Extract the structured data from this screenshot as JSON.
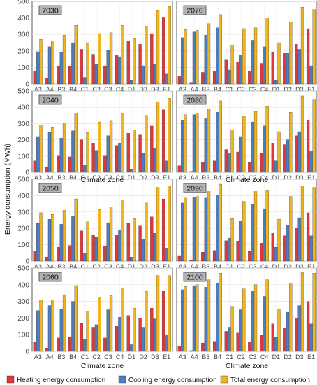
{
  "chart_data": {
    "type": "bar",
    "ylabel": "Energy consumption (MWh)",
    "xlabel": "Climate zone",
    "ylim": [
      0,
      500
    ],
    "yticks": [
      0,
      100,
      200,
      300,
      400,
      500
    ],
    "grid": true,
    "legend_position": "bottom",
    "categories": [
      "A3",
      "A4",
      "B3",
      "B4",
      "C1",
      "C2",
      "C3",
      "C4",
      "D1",
      "D2",
      "D3",
      "E1"
    ],
    "series_names": [
      "Heating energy consumption",
      "Cooling energy consumption",
      "Total energy consumption"
    ],
    "colors": {
      "heating": "#e0363c",
      "cooling": "#4a7cc4",
      "total": "#f2b51c"
    },
    "panels": [
      {
        "label": "2030",
        "heating": [
          75,
          35,
          105,
          105,
          210,
          180,
          110,
          175,
          260,
          240,
          305,
          405
        ],
        "cooling": [
          195,
          225,
          190,
          250,
          40,
          120,
          205,
          165,
          20,
          110,
          120,
          60
        ],
        "total": [
          270,
          260,
          295,
          355,
          250,
          305,
          310,
          355,
          275,
          350,
          445,
          470
        ]
      },
      {
        "label": "2070",
        "heating": [
          45,
          10,
          70,
          75,
          145,
          135,
          75,
          125,
          190,
          185,
          240,
          335
        ],
        "cooling": [
          280,
          315,
          295,
          340,
          85,
          175,
          265,
          225,
          25,
          185,
          210,
          110
        ],
        "total": [
          330,
          325,
          365,
          420,
          235,
          335,
          340,
          400,
          250,
          375,
          465,
          450
        ]
      },
      {
        "label": "2040",
        "heating": [
          70,
          30,
          100,
          95,
          200,
          180,
          100,
          165,
          240,
          230,
          285,
          385
        ],
        "cooling": [
          220,
          245,
          210,
          255,
          45,
          135,
          225,
          180,
          20,
          120,
          150,
          70
        ],
        "total": [
          290,
          275,
          305,
          365,
          245,
          310,
          315,
          360,
          260,
          350,
          435,
          455
        ]
      },
      {
        "label": "2080",
        "heating": [
          40,
          5,
          60,
          70,
          140,
          125,
          60,
          115,
          180,
          170,
          225,
          320
        ],
        "cooling": [
          320,
          355,
          330,
          370,
          120,
          220,
          310,
          285,
          70,
          200,
          250,
          130
        ],
        "total": [
          355,
          360,
          390,
          440,
          260,
          345,
          375,
          405,
          250,
          370,
          470,
          445
        ]
      },
      {
        "label": "2050",
        "heating": [
          60,
          25,
          85,
          95,
          185,
          160,
          90,
          160,
          230,
          215,
          270,
          380
        ],
        "cooling": [
          230,
          255,
          225,
          275,
          50,
          145,
          235,
          190,
          25,
          135,
          170,
          80
        ],
        "total": [
          295,
          285,
          310,
          380,
          240,
          315,
          330,
          375,
          260,
          355,
          450,
          460
        ]
      },
      {
        "label": "2090",
        "heating": [
          30,
          5,
          55,
          65,
          125,
          120,
          60,
          110,
          170,
          155,
          200,
          295
        ],
        "cooling": [
          355,
          390,
          385,
          405,
          140,
          245,
          345,
          320,
          85,
          220,
          265,
          155
        ],
        "total": [
          385,
          395,
          425,
          470,
          260,
          365,
          425,
          430,
          255,
          395,
          460,
          450
        ]
      },
      {
        "label": "2060",
        "heating": [
          55,
          20,
          80,
          85,
          170,
          145,
          80,
          150,
          215,
          200,
          260,
          360
        ],
        "cooling": [
          245,
          275,
          255,
          300,
          70,
          160,
          250,
          205,
          40,
          145,
          195,
          95
        ],
        "total": [
          310,
          310,
          340,
          395,
          240,
          325,
          335,
          380,
          260,
          360,
          455,
          455
        ]
      },
      {
        "label": "2100",
        "heating": [
          30,
          5,
          50,
          60,
          120,
          110,
          55,
          100,
          165,
          140,
          200,
          300
        ],
        "cooling": [
          370,
          395,
          385,
          410,
          145,
          250,
          360,
          330,
          85,
          235,
          275,
          165
        ],
        "total": [
          390,
          400,
          430,
          470,
          270,
          375,
          400,
          430,
          250,
          405,
          475,
          470
        ]
      }
    ]
  }
}
